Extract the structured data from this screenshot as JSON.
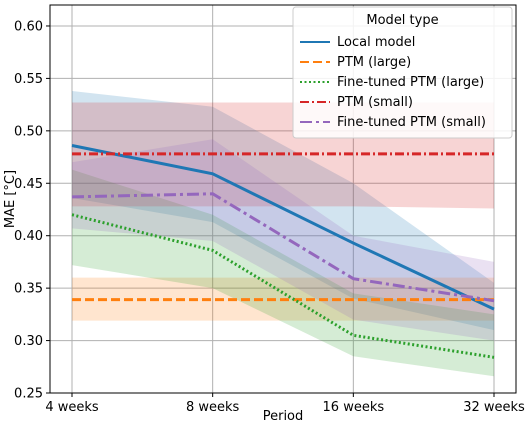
{
  "chart_data": {
    "type": "line",
    "categories": [
      "4 weeks",
      "8 weeks",
      "16 weeks",
      "32 weeks"
    ],
    "xlabel": "Period",
    "ylabel": "MAE [°C]",
    "ylim": [
      0.25,
      0.62
    ],
    "yticks": [
      0.25,
      0.3,
      0.35,
      0.4,
      0.45,
      0.5,
      0.55,
      0.6
    ],
    "grid": true,
    "legend": {
      "title": "Model type",
      "placement": "top-right"
    },
    "series": [
      {
        "name": "Local model",
        "color": "#1f77b4",
        "dash": "solid",
        "values": [
          0.486,
          0.459,
          0.393,
          0.33
        ],
        "lower": [
          0.436,
          0.413,
          0.34,
          0.31
        ],
        "upper": [
          0.538,
          0.523,
          0.45,
          0.355
        ]
      },
      {
        "name": "PTM (large)",
        "color": "#ff7f0e",
        "dash": "dashed",
        "values": [
          0.339,
          0.339,
          0.339,
          0.339
        ],
        "lower": [
          0.319,
          0.319,
          0.319,
          0.319
        ],
        "upper": [
          0.36,
          0.36,
          0.36,
          0.36
        ]
      },
      {
        "name": "Fine-tuned PTM (large)",
        "color": "#2ca02c",
        "dash": "dotted",
        "values": [
          0.42,
          0.386,
          0.305,
          0.284
        ],
        "lower": [
          0.372,
          0.35,
          0.285,
          0.266
        ],
        "upper": [
          0.463,
          0.42,
          0.345,
          0.325
        ]
      },
      {
        "name": "PTM (small)",
        "color": "#d62728",
        "dash": "dashdot",
        "values": [
          0.478,
          0.478,
          0.478,
          0.478
        ],
        "lower": [
          0.428,
          0.428,
          0.428,
          0.426
        ],
        "upper": [
          0.527,
          0.527,
          0.527,
          0.527
        ]
      },
      {
        "name": "Fine-tuned PTM (small)",
        "color": "#9467bd",
        "dash": "longdashdot",
        "values": [
          0.437,
          0.44,
          0.359,
          0.338
        ],
        "lower": [
          0.407,
          0.395,
          0.32,
          0.3
        ],
        "upper": [
          0.47,
          0.492,
          0.4,
          0.375
        ]
      }
    ]
  }
}
